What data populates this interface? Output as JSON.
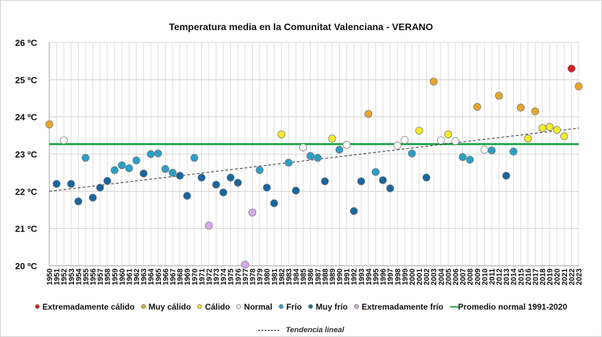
{
  "chart_data": {
    "type": "scatter",
    "title": "Temperatura media en la Comunitat Valenciana - VERANO",
    "ylim": [
      20,
      26
    ],
    "yticks": [
      "20 ºC",
      "21 ºC",
      "22 ºC",
      "23 ºC",
      "24 ºC",
      "25 ºC",
      "26 ºC"
    ],
    "x_tick_labels": [
      "1950",
      "1951",
      "1952",
      "1953",
      "1954",
      "1955",
      "1956",
      "1957",
      "1958",
      "1959",
      "1960",
      "1961",
      "1962",
      "1963",
      "1964",
      "1965",
      "1966",
      "1967",
      "1968",
      "1969",
      "1970",
      "1971",
      "1972",
      "1973",
      "1974",
      "1975",
      "1976",
      "1977",
      "1978",
      "1979",
      "1980",
      "1981",
      "1982",
      "1983",
      "1984",
      "1985",
      "1986",
      "1987",
      "1988",
      "1989",
      "1990",
      "1991",
      "1992",
      "1993",
      "1994",
      "1995",
      "1996",
      "1997",
      "1998",
      "1999",
      "2000",
      "2001",
      "2002",
      "2003",
      "2004",
      "2005",
      "2006",
      "2007",
      "2008",
      "2009",
      "2010",
      "2011",
      "2012",
      "2013",
      "2014",
      "2015",
      "2016",
      "2017",
      "2018",
      "2019",
      "2020",
      "2021",
      "2022",
      "2023"
    ],
    "categories": {
      "EC": {
        "label": "Extremadamente cálido",
        "color": "#e3191c"
      },
      "MC": {
        "label": "Muy cálido",
        "color": "#e8a629"
      },
      "C": {
        "label": "Cálido",
        "color": "#f5ea2a"
      },
      "N": {
        "label": "Normal",
        "color": "#ffffff"
      },
      "F": {
        "label": "Frío",
        "color": "#2b9fc9"
      },
      "MF": {
        "label": "Muy frío",
        "color": "#17669e"
      },
      "EF": {
        "label": "Extremadamente frío",
        "color": "#d5a8ec"
      }
    },
    "points": [
      {
        "year": 1950,
        "value": 23.8,
        "cat": "MC"
      },
      {
        "year": 1951,
        "value": 22.2,
        "cat": "MF"
      },
      {
        "year": 1952,
        "value": 23.37,
        "cat": "N"
      },
      {
        "year": 1953,
        "value": 22.2,
        "cat": "MF"
      },
      {
        "year": 1954,
        "value": 21.73,
        "cat": "MF"
      },
      {
        "year": 1955,
        "value": 22.9,
        "cat": "F"
      },
      {
        "year": 1956,
        "value": 21.83,
        "cat": "MF"
      },
      {
        "year": 1957,
        "value": 22.1,
        "cat": "MF"
      },
      {
        "year": 1958,
        "value": 22.28,
        "cat": "MF"
      },
      {
        "year": 1959,
        "value": 22.57,
        "cat": "F"
      },
      {
        "year": 1960,
        "value": 22.7,
        "cat": "F"
      },
      {
        "year": 1961,
        "value": 22.62,
        "cat": "F"
      },
      {
        "year": 1962,
        "value": 22.83,
        "cat": "F"
      },
      {
        "year": 1963,
        "value": 22.48,
        "cat": "MF"
      },
      {
        "year": 1964,
        "value": 23.0,
        "cat": "F"
      },
      {
        "year": 1965,
        "value": 23.02,
        "cat": "F"
      },
      {
        "year": 1966,
        "value": 22.6,
        "cat": "F"
      },
      {
        "year": 1967,
        "value": 22.5,
        "cat": "F"
      },
      {
        "year": 1968,
        "value": 22.42,
        "cat": "MF"
      },
      {
        "year": 1969,
        "value": 21.88,
        "cat": "MF"
      },
      {
        "year": 1970,
        "value": 22.9,
        "cat": "F"
      },
      {
        "year": 1971,
        "value": 22.37,
        "cat": "MF"
      },
      {
        "year": 1972,
        "value": 21.08,
        "cat": "EF"
      },
      {
        "year": 1973,
        "value": 22.18,
        "cat": "MF"
      },
      {
        "year": 1974,
        "value": 21.97,
        "cat": "MF"
      },
      {
        "year": 1975,
        "value": 22.37,
        "cat": "MF"
      },
      {
        "year": 1976,
        "value": 22.23,
        "cat": "MF"
      },
      {
        "year": 1977,
        "value": 20.03,
        "cat": "EF"
      },
      {
        "year": 1978,
        "value": 21.43,
        "cat": "EF"
      },
      {
        "year": 1979,
        "value": 22.57,
        "cat": "F"
      },
      {
        "year": 1980,
        "value": 22.1,
        "cat": "MF"
      },
      {
        "year": 1981,
        "value": 21.68,
        "cat": "MF"
      },
      {
        "year": 1982,
        "value": 23.53,
        "cat": "C"
      },
      {
        "year": 1983,
        "value": 22.77,
        "cat": "F"
      },
      {
        "year": 1984,
        "value": 22.02,
        "cat": "MF"
      },
      {
        "year": 1985,
        "value": 23.18,
        "cat": "N"
      },
      {
        "year": 1986,
        "value": 22.95,
        "cat": "F"
      },
      {
        "year": 1987,
        "value": 22.9,
        "cat": "F"
      },
      {
        "year": 1988,
        "value": 22.27,
        "cat": "MF"
      },
      {
        "year": 1989,
        "value": 23.42,
        "cat": "C"
      },
      {
        "year": 1990,
        "value": 23.12,
        "cat": "F"
      },
      {
        "year": 1991,
        "value": 23.25,
        "cat": "N"
      },
      {
        "year": 1992,
        "value": 21.47,
        "cat": "MF"
      },
      {
        "year": 1993,
        "value": 22.27,
        "cat": "MF"
      },
      {
        "year": 1994,
        "value": 24.08,
        "cat": "MC"
      },
      {
        "year": 1995,
        "value": 22.52,
        "cat": "F"
      },
      {
        "year": 1996,
        "value": 22.3,
        "cat": "MF"
      },
      {
        "year": 1997,
        "value": 22.08,
        "cat": "MF"
      },
      {
        "year": 1998,
        "value": 23.23,
        "cat": "N"
      },
      {
        "year": 1999,
        "value": 23.38,
        "cat": "N"
      },
      {
        "year": 2000,
        "value": 23.02,
        "cat": "F"
      },
      {
        "year": 2001,
        "value": 23.63,
        "cat": "C"
      },
      {
        "year": 2002,
        "value": 22.37,
        "cat": "MF"
      },
      {
        "year": 2003,
        "value": 24.95,
        "cat": "MC"
      },
      {
        "year": 2004,
        "value": 23.37,
        "cat": "N"
      },
      {
        "year": 2005,
        "value": 23.53,
        "cat": "C"
      },
      {
        "year": 2006,
        "value": 23.35,
        "cat": "N"
      },
      {
        "year": 2007,
        "value": 22.92,
        "cat": "F"
      },
      {
        "year": 2008,
        "value": 22.85,
        "cat": "F"
      },
      {
        "year": 2009,
        "value": 24.27,
        "cat": "MC"
      },
      {
        "year": 2010,
        "value": 23.12,
        "cat": "N"
      },
      {
        "year": 2011,
        "value": 23.1,
        "cat": "F"
      },
      {
        "year": 2012,
        "value": 24.57,
        "cat": "MC"
      },
      {
        "year": 2013,
        "value": 22.42,
        "cat": "MF"
      },
      {
        "year": 2014,
        "value": 23.07,
        "cat": "F"
      },
      {
        "year": 2015,
        "value": 24.25,
        "cat": "MC"
      },
      {
        "year": 2016,
        "value": 23.42,
        "cat": "C"
      },
      {
        "year": 2017,
        "value": 24.15,
        "cat": "MC"
      },
      {
        "year": 2018,
        "value": 23.7,
        "cat": "C"
      },
      {
        "year": 2019,
        "value": 23.73,
        "cat": "C"
      },
      {
        "year": 2020,
        "value": 23.65,
        "cat": "C"
      },
      {
        "year": 2021,
        "value": 23.48,
        "cat": "C"
      },
      {
        "year": 2022,
        "value": 25.3,
        "cat": "EC"
      },
      {
        "year": 2023,
        "value": 24.82,
        "cat": "MC"
      }
    ],
    "reference_line": {
      "label": "Promedio normal 1991-2020",
      "value": 23.27,
      "color": "#1fa64a"
    },
    "trend": {
      "label": "Tendencia lineal",
      "start_year": 1950,
      "start_value": 22.0,
      "end_year": 2023,
      "end_value": 23.7,
      "color": "#444444"
    },
    "grid": true,
    "legend_position": "bottom"
  },
  "trend_dash_text": "-------"
}
